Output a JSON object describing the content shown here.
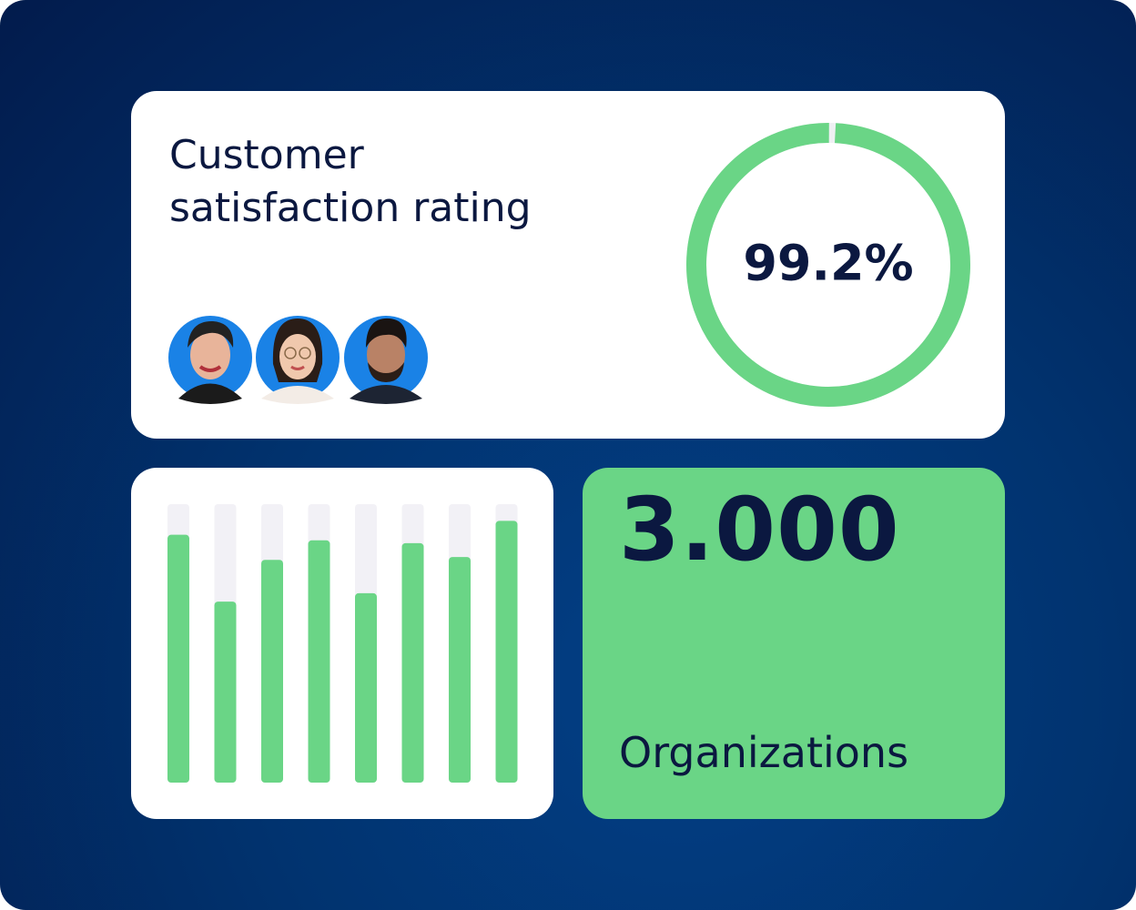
{
  "rating_card": {
    "title": "Customer satisfaction rating",
    "rating": {
      "value": 99.2,
      "label": "99.2%"
    },
    "lim": [
      0,
      100
    ]
  },
  "bars_card": {
    "chart_data": {
      "type": "bar",
      "values": [
        89,
        65,
        80,
        87,
        68,
        86,
        81,
        94
      ],
      "ylim": [
        0,
        100
      ],
      "color": "#6ad586",
      "track_color": "#f2f1f6"
    }
  },
  "stat_card": {
    "value": "3.000",
    "label": "Organizations"
  }
}
